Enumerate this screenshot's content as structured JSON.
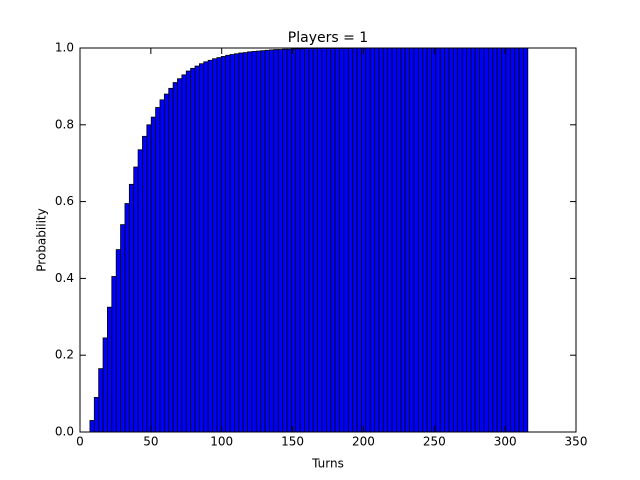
{
  "chart_data": {
    "type": "histogram",
    "title": "Players = 1",
    "x_label": "Turns",
    "y_label": "Probability",
    "bins": [
      7,
      10.09,
      13.18,
      16.27,
      19.36,
      22.45,
      25.54,
      28.63,
      31.72,
      34.81,
      37.9,
      40.99,
      44.08,
      47.17,
      50.26,
      53.35,
      56.44,
      59.53,
      62.62,
      65.71,
      68.8,
      71.89,
      74.98,
      78.07,
      81.16,
      84.25,
      87.34,
      90.43,
      93.52,
      96.61,
      99.7,
      102.79,
      105.88,
      108.97,
      112.06,
      115.15,
      118.24,
      121.33,
      124.42,
      127.51,
      130.6,
      133.69,
      136.78,
      139.87,
      142.96,
      146.05,
      149.14,
      152.23,
      155.32,
      158.41,
      161.5,
      164.59,
      167.68,
      170.77,
      173.86,
      176.95,
      180.04,
      183.13,
      186.22,
      189.31,
      192.4,
      195.49,
      198.58,
      201.67,
      204.76,
      207.85,
      210.94,
      214.03,
      217.12,
      220.21,
      223.3,
      226.39,
      229.48,
      232.57,
      235.66,
      238.75,
      241.84,
      244.93,
      248.02,
      251.11,
      254.2,
      257.29,
      260.38,
      263.47,
      266.56,
      269.65,
      272.74,
      275.83,
      278.92,
      282.01,
      285.1,
      288.19,
      291.28,
      294.37,
      297.46,
      300.55,
      303.64,
      306.73,
      309.82,
      312.91,
      316
    ],
    "values": [
      0.03,
      0.09,
      0.165,
      0.245,
      0.325,
      0.405,
      0.475,
      0.54,
      0.595,
      0.645,
      0.69,
      0.735,
      0.77,
      0.8,
      0.82,
      0.845,
      0.865,
      0.88,
      0.895,
      0.91,
      0.92,
      0.93,
      0.94,
      0.947,
      0.953,
      0.959,
      0.964,
      0.968,
      0.972,
      0.975,
      0.978,
      0.981,
      0.983,
      0.985,
      0.987,
      0.988,
      0.99,
      0.991,
      0.992,
      0.993,
      0.994,
      0.995,
      0.996,
      0.996,
      0.997,
      0.997,
      0.998,
      0.998,
      0.998,
      0.999,
      0.999,
      0.999,
      0.999,
      0.999,
      0.999,
      0.999,
      0.999,
      0.999,
      0.999,
      0.999,
      1,
      1,
      1,
      1,
      1,
      1,
      1,
      1,
      1,
      1,
      1,
      1,
      1,
      1,
      1,
      1,
      1,
      1,
      1,
      1,
      1,
      1,
      1,
      1,
      1,
      1,
      1,
      1,
      1,
      1,
      1,
      1,
      1,
      1,
      1,
      1,
      1,
      1,
      1,
      1
    ],
    "color": "#0000ff",
    "edge_color": "#000000",
    "xlim": [
      0,
      350
    ],
    "xticks": [
      0,
      50,
      100,
      150,
      200,
      250,
      300,
      350
    ],
    "ylim": [
      0,
      1
    ],
    "yticks": [
      {
        "value": 0,
        "label": "0.0"
      },
      0.2,
      0.4,
      0.6,
      0.8,
      {
        "value": 1,
        "label": "1.0"
      }
    ],
    "grid": false
  }
}
